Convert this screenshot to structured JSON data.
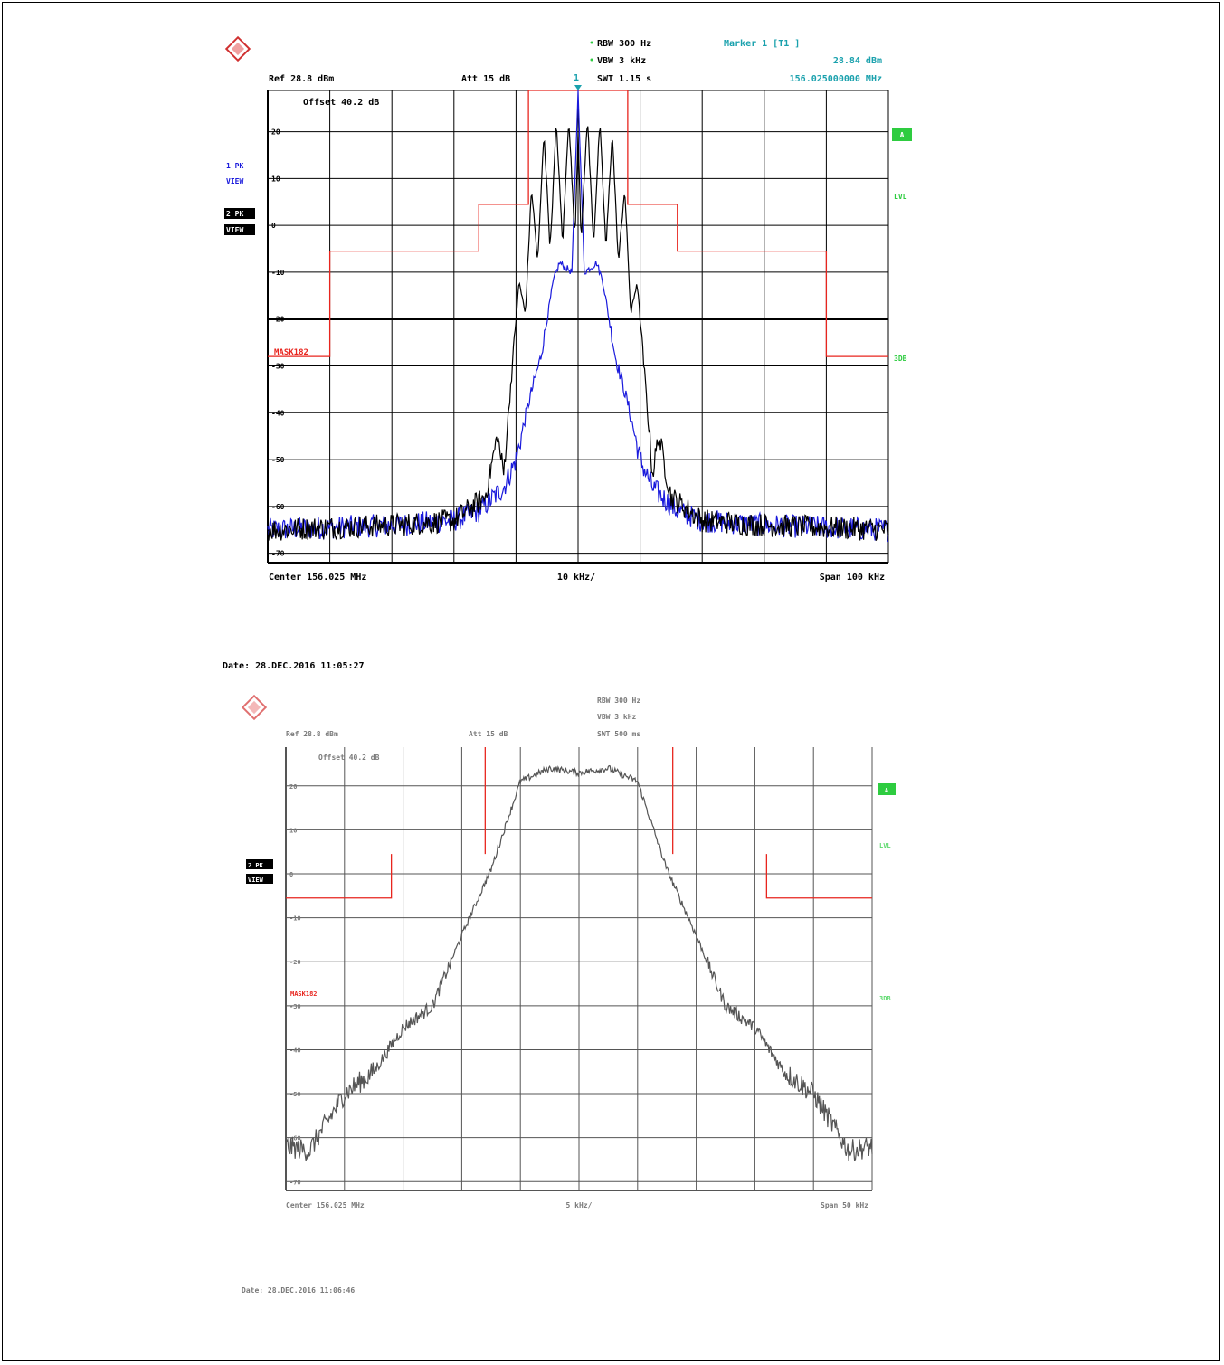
{
  "colors": {
    "trace1": "#1a1adc",
    "trace2": "#000000",
    "mask": "#e8251e",
    "cyan": "#1aa1ad",
    "green": "#2ecc40",
    "blue_label": "#1a1adc"
  },
  "plot1": {
    "rbw": "RBW  300 Hz",
    "vbw": "VBW  3 kHz",
    "swt": "SWT  1.15 s",
    "marker_title": "Marker 1 [T1 ]",
    "marker_level": "28.84 dBm",
    "marker_freq": "156.025000000 MHz",
    "marker_num": "1",
    "ref": "Ref  28.8 dBm",
    "att": "Att   15 dB",
    "offset": "Offset  40.2 dB",
    "trace1_label": [
      "1 PK",
      "VIEW"
    ],
    "trace2_label": [
      "2 PK",
      "VIEW"
    ],
    "right_a": "A",
    "right_lvl": "LVL",
    "right_3db": "3DB",
    "mask_label": "MASK182",
    "center": "Center  156.025 MHz",
    "div": "10 kHz/",
    "span": "Span  100 kHz",
    "date": "Date: 28.DEC.2016  11:05:27"
  },
  "plot2": {
    "rbw": "RBW  300 Hz",
    "vbw": "VBW  3 kHz",
    "swt": "SWT  500 ms",
    "ref": "Ref  28.8 dBm",
    "att": "Att   15 dB",
    "offset": "Offset  40.2 dB",
    "trace2_label": [
      "2 PK",
      "VIEW"
    ],
    "right_a": "A",
    "right_lvl": "LVL",
    "right_3db": "3DB",
    "mask_label": "MASK182",
    "center": "Center  156.025 MHz",
    "div": "5 kHz/",
    "span": "Span  50 kHz",
    "date": "Date: 28.DEC.2016  11:06:46"
  },
  "chart_data": [
    {
      "type": "line",
      "x_unit": "kHz offset from 156.025 MHz",
      "xlim": [
        -50,
        50
      ],
      "ylim": [
        -72,
        28.8
      ],
      "grid": true,
      "ytick_labels": [
        "20",
        "10",
        "0",
        "-10",
        "-20",
        "-30",
        "-40",
        "-50",
        "-60",
        "-70"
      ],
      "ytick_values": [
        20,
        10,
        0,
        -10,
        -20,
        -30,
        -40,
        -50,
        -60,
        -70
      ],
      "threshold_line": -20,
      "mask": {
        "x": [
          -50,
          -40,
          -40,
          -16,
          -16,
          -8,
          -8,
          8,
          8,
          16,
          16,
          40,
          40,
          50
        ],
        "y": [
          -28,
          -28,
          -5.5,
          -5.5,
          4.5,
          4.5,
          28.8,
          28.8,
          4.5,
          4.5,
          -5.5,
          -5.5,
          -28,
          -28
        ]
      },
      "series": [
        {
          "name": "1 PK VIEW",
          "x": [
            -50,
            -30,
            -20,
            -16,
            -12,
            -10,
            -8,
            -6,
            -5,
            -4,
            -3,
            -2,
            -1,
            0,
            1,
            2,
            3,
            4,
            5,
            6,
            8,
            10,
            12,
            16,
            20,
            30,
            50
          ],
          "y": [
            -65,
            -64,
            -63,
            -61,
            -56,
            -50,
            -38,
            -28,
            -20,
            -12,
            -8,
            -9,
            -10,
            28.8,
            -10,
            -9,
            -8,
            -12,
            -20,
            -28,
            -38,
            -50,
            -56,
            -61,
            -63,
            -64,
            -65
          ]
        },
        {
          "name": "2 PK VIEW",
          "x": [
            -50,
            -30,
            -20,
            -15,
            -13,
            -12,
            -10,
            -9.5,
            -8.5,
            -7.5,
            -6.5,
            -5.5,
            -4.5,
            -3.5,
            -2.5,
            -1.5,
            -0.5,
            0,
            0.5,
            1.5,
            2.5,
            3.5,
            4.5,
            5.5,
            6.5,
            7.5,
            8.5,
            9.5,
            10,
            12,
            13,
            15,
            20,
            30,
            50
          ],
          "y": [
            -65,
            -64,
            -63,
            -58,
            -45,
            -53,
            -20,
            -12,
            -19,
            8,
            -8,
            20,
            -5,
            22,
            -4,
            23,
            -3,
            20,
            -3,
            23,
            -4,
            22,
            -5,
            20,
            -8,
            8,
            -19,
            -12,
            -20,
            -53,
            -45,
            -58,
            -63,
            -64,
            -65
          ]
        }
      ]
    },
    {
      "type": "line",
      "x_unit": "kHz offset from 156.025 MHz",
      "xlim": [
        -25,
        25
      ],
      "ylim": [
        -72,
        28.8
      ],
      "grid": true,
      "ytick_labels": [
        "20",
        "10",
        "0",
        "-10",
        "-20",
        "-30",
        "-40",
        "-50",
        "-60",
        "-70"
      ],
      "ytick_values": [
        20,
        10,
        0,
        -10,
        -20,
        -30,
        -40,
        -50,
        -60,
        -70
      ],
      "mask": {
        "segments": [
          {
            "x": [
              -25,
              -16,
              -16
            ],
            "y": [
              -5.5,
              -5.5,
              4.5
            ]
          },
          {
            "x": [
              -8,
              -8
            ],
            "y": [
              28.8,
              4.5
            ]
          },
          {
            "x": [
              8,
              8
            ],
            "y": [
              28.8,
              4.5
            ]
          },
          {
            "x": [
              16,
              16,
              25
            ],
            "y": [
              4.5,
              -5.5,
              -5.5
            ]
          }
        ]
      },
      "series": [
        {
          "name": "2 PK VIEW",
          "x": [
            -25,
            -23,
            -20,
            -17.5,
            -15,
            -12.5,
            -10,
            -7.5,
            -5,
            -2.5,
            0,
            2.5,
            5,
            7.5,
            10,
            12.5,
            15,
            17.5,
            20,
            23,
            25
          ],
          "y": [
            -62,
            -63,
            -50,
            -45,
            -35,
            -30,
            -14,
            1,
            21,
            24,
            23,
            24,
            21,
            1,
            -14,
            -30,
            -35,
            -45,
            -50,
            -63,
            -62
          ]
        }
      ]
    }
  ]
}
